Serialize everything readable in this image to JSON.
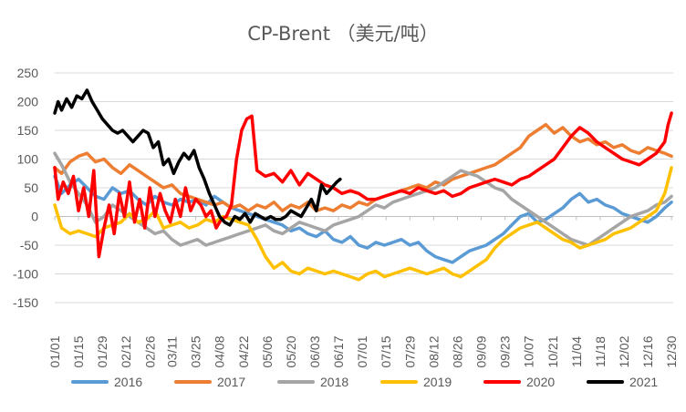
{
  "chart_data": {
    "type": "line",
    "title": "CP-Brent （美元/吨）",
    "xlabel": "",
    "ylabel": "",
    "ylim": [
      -150,
      250
    ],
    "yticks": [
      -150,
      -100,
      -50,
      0,
      50,
      100,
      150,
      200,
      250
    ],
    "xlim": [
      1,
      365
    ],
    "categories": [
      "01/01",
      "01/15",
      "01/29",
      "02/12",
      "02/26",
      "03/11",
      "03/25",
      "04/08",
      "04/22",
      "05/06",
      "05/20",
      "06/03",
      "06/17",
      "07/01",
      "07/15",
      "07/29",
      "08/12",
      "08/26",
      "09/09",
      "09/23",
      "10/07",
      "10/21",
      "11/04",
      "11/18",
      "12/02",
      "12/16",
      "12/30"
    ],
    "category_days": [
      1,
      15,
      29,
      43,
      57,
      70,
      84,
      98,
      112,
      126,
      140,
      154,
      168,
      182,
      196,
      210,
      224,
      238,
      252,
      266,
      280,
      294,
      308,
      322,
      336,
      350,
      364
    ],
    "grid": true,
    "legend_position": "bottom",
    "series": [
      {
        "name": "2016",
        "color": "#5b9bd5",
        "x": [
          1,
          5,
          10,
          15,
          20,
          25,
          30,
          35,
          40,
          45,
          50,
          55,
          60,
          65,
          70,
          75,
          80,
          85,
          90,
          95,
          100,
          105,
          110,
          115,
          120,
          125,
          130,
          135,
          140,
          145,
          150,
          155,
          160,
          165,
          170,
          175,
          180,
          185,
          190,
          195,
          200,
          205,
          210,
          215,
          220,
          225,
          230,
          235,
          240,
          245,
          250,
          255,
          260,
          265,
          270,
          275,
          280,
          285,
          290,
          295,
          300,
          305,
          310,
          315,
          320,
          325,
          330,
          335,
          340,
          345,
          350,
          355,
          360,
          364
        ],
        "y": [
          70,
          40,
          55,
          65,
          50,
          35,
          30,
          50,
          40,
          45,
          30,
          20,
          35,
          25,
          20,
          30,
          25,
          30,
          20,
          35,
          25,
          15,
          10,
          5,
          0,
          -5,
          -10,
          -15,
          -25,
          -20,
          -30,
          -35,
          -25,
          -40,
          -45,
          -35,
          -50,
          -55,
          -45,
          -50,
          -45,
          -40,
          -50,
          -45,
          -60,
          -70,
          -75,
          -80,
          -70,
          -60,
          -55,
          -50,
          -40,
          -30,
          -15,
          0,
          5,
          -10,
          -5,
          5,
          15,
          30,
          40,
          25,
          30,
          20,
          15,
          5,
          0,
          -5,
          -10,
          0,
          15,
          25
        ]
      },
      {
        "name": "2017",
        "color": "#ed7d31",
        "x": [
          1,
          5,
          10,
          15,
          20,
          25,
          30,
          35,
          40,
          45,
          50,
          55,
          60,
          65,
          70,
          75,
          80,
          85,
          90,
          95,
          100,
          105,
          110,
          115,
          120,
          125,
          130,
          135,
          140,
          145,
          150,
          155,
          160,
          165,
          170,
          175,
          180,
          185,
          190,
          195,
          200,
          205,
          210,
          215,
          220,
          225,
          230,
          235,
          240,
          245,
          250,
          255,
          260,
          265,
          270,
          275,
          280,
          285,
          290,
          295,
          300,
          305,
          310,
          315,
          320,
          325,
          330,
          335,
          340,
          345,
          350,
          355,
          360,
          364
        ],
        "y": [
          85,
          75,
          95,
          105,
          110,
          95,
          100,
          85,
          75,
          90,
          80,
          70,
          60,
          50,
          55,
          40,
          35,
          30,
          25,
          20,
          25,
          15,
          20,
          10,
          20,
          15,
          25,
          10,
          20,
          15,
          25,
          10,
          15,
          10,
          20,
          15,
          25,
          20,
          30,
          35,
          40,
          45,
          50,
          55,
          50,
          60,
          55,
          65,
          70,
          75,
          80,
          85,
          90,
          100,
          110,
          120,
          140,
          150,
          160,
          145,
          155,
          140,
          130,
          135,
          125,
          130,
          120,
          125,
          115,
          110,
          120,
          115,
          110,
          105
        ]
      },
      {
        "name": "2018",
        "color": "#a5a5a5",
        "x": [
          1,
          5,
          10,
          15,
          20,
          25,
          30,
          35,
          40,
          45,
          50,
          55,
          60,
          65,
          70,
          75,
          80,
          85,
          90,
          95,
          100,
          105,
          110,
          115,
          120,
          125,
          130,
          135,
          140,
          145,
          150,
          155,
          160,
          165,
          170,
          175,
          180,
          185,
          190,
          195,
          200,
          205,
          210,
          215,
          220,
          225,
          230,
          235,
          240,
          245,
          250,
          255,
          260,
          265,
          270,
          275,
          280,
          285,
          290,
          295,
          300,
          305,
          310,
          315,
          320,
          325,
          330,
          335,
          340,
          345,
          350,
          355,
          360,
          364
        ],
        "y": [
          110,
          90,
          60,
          40,
          20,
          -10,
          0,
          20,
          10,
          0,
          -10,
          -20,
          -30,
          -25,
          -40,
          -50,
          -45,
          -40,
          -50,
          -45,
          -40,
          -35,
          -30,
          -25,
          -20,
          -15,
          -25,
          -30,
          -20,
          -10,
          -15,
          -20,
          -25,
          -15,
          -10,
          -5,
          0,
          10,
          20,
          15,
          25,
          30,
          35,
          40,
          45,
          50,
          60,
          70,
          80,
          75,
          70,
          60,
          50,
          45,
          30,
          20,
          10,
          0,
          -10,
          -20,
          -30,
          -40,
          -45,
          -50,
          -40,
          -30,
          -20,
          -10,
          0,
          5,
          10,
          20,
          25,
          35
        ]
      },
      {
        "name": "2019",
        "color": "#ffc000",
        "x": [
          1,
          5,
          10,
          15,
          20,
          25,
          30,
          35,
          40,
          45,
          50,
          55,
          60,
          65,
          70,
          75,
          80,
          85,
          90,
          95,
          100,
          105,
          110,
          115,
          120,
          125,
          130,
          135,
          140,
          145,
          150,
          155,
          160,
          165,
          170,
          175,
          180,
          185,
          190,
          195,
          200,
          205,
          210,
          215,
          220,
          225,
          230,
          235,
          240,
          245,
          250,
          255,
          260,
          265,
          270,
          275,
          280,
          285,
          290,
          295,
          300,
          305,
          310,
          315,
          320,
          325,
          330,
          335,
          340,
          345,
          350,
          355,
          360,
          364
        ],
        "y": [
          20,
          -20,
          -30,
          -25,
          -30,
          -35,
          -20,
          -15,
          -10,
          5,
          -10,
          -5,
          10,
          -20,
          -15,
          -10,
          -20,
          -15,
          -5,
          -10,
          0,
          -5,
          -10,
          -15,
          -40,
          -70,
          -90,
          -80,
          -95,
          -100,
          -90,
          -95,
          -100,
          -95,
          -100,
          -105,
          -110,
          -100,
          -95,
          -105,
          -100,
          -95,
          -90,
          -95,
          -100,
          -95,
          -90,
          -100,
          -105,
          -95,
          -85,
          -75,
          -55,
          -40,
          -30,
          -20,
          -15,
          -10,
          -20,
          -30,
          -40,
          -45,
          -55,
          -50,
          -45,
          -40,
          -30,
          -25,
          -20,
          -10,
          0,
          10,
          40,
          85
        ]
      },
      {
        "name": "2020",
        "color": "#ff0000",
        "x": [
          1,
          3,
          6,
          9,
          12,
          15,
          18,
          21,
          24,
          27,
          30,
          33,
          36,
          39,
          42,
          45,
          48,
          51,
          54,
          57,
          60,
          63,
          66,
          69,
          72,
          75,
          78,
          81,
          84,
          87,
          90,
          93,
          96,
          99,
          102,
          105,
          108,
          111,
          114,
          117,
          120,
          125,
          130,
          135,
          140,
          145,
          150,
          155,
          160,
          165,
          170,
          175,
          180,
          185,
          190,
          195,
          200,
          205,
          210,
          215,
          220,
          225,
          230,
          235,
          240,
          245,
          250,
          255,
          260,
          265,
          270,
          275,
          280,
          285,
          290,
          295,
          300,
          305,
          310,
          315,
          320,
          325,
          330,
          335,
          340,
          345,
          350,
          355,
          360,
          362,
          364
        ],
        "y": [
          85,
          30,
          60,
          40,
          70,
          10,
          50,
          0,
          80,
          -70,
          -20,
          20,
          -30,
          40,
          0,
          60,
          -10,
          30,
          -20,
          50,
          0,
          40,
          10,
          -10,
          30,
          0,
          50,
          10,
          30,
          20,
          0,
          10,
          -20,
          -5,
          0,
          20,
          100,
          150,
          170,
          175,
          80,
          70,
          75,
          60,
          80,
          55,
          75,
          65,
          55,
          50,
          40,
          45,
          40,
          30,
          30,
          35,
          40,
          45,
          40,
          50,
          45,
          40,
          45,
          35,
          40,
          50,
          55,
          60,
          65,
          60,
          55,
          65,
          70,
          80,
          90,
          100,
          120,
          140,
          155,
          145,
          130,
          120,
          110,
          100,
          95,
          90,
          100,
          110,
          130,
          160,
          180
        ]
      },
      {
        "name": "2021",
        "color": "#000000",
        "x": [
          1,
          3,
          5,
          8,
          11,
          14,
          17,
          20,
          23,
          26,
          29,
          32,
          35,
          38,
          41,
          44,
          47,
          50,
          53,
          56,
          59,
          62,
          65,
          68,
          71,
          74,
          77,
          80,
          83,
          86,
          89,
          92,
          95,
          98,
          101,
          104,
          107,
          110,
          113,
          116,
          119,
          122,
          125,
          128,
          131,
          134,
          137,
          140,
          143,
          146,
          149,
          152,
          155,
          158,
          161,
          164,
          167,
          169
        ],
        "y": [
          180,
          200,
          185,
          205,
          190,
          210,
          205,
          220,
          200,
          185,
          170,
          160,
          150,
          145,
          150,
          140,
          130,
          140,
          150,
          145,
          120,
          130,
          90,
          100,
          75,
          95,
          110,
          100,
          115,
          85,
          65,
          40,
          20,
          0,
          -10,
          -15,
          0,
          -5,
          5,
          -10,
          5,
          0,
          -5,
          0,
          -5,
          -5,
          0,
          10,
          5,
          0,
          15,
          30,
          10,
          55,
          40,
          50,
          60,
          65
        ]
      }
    ]
  }
}
